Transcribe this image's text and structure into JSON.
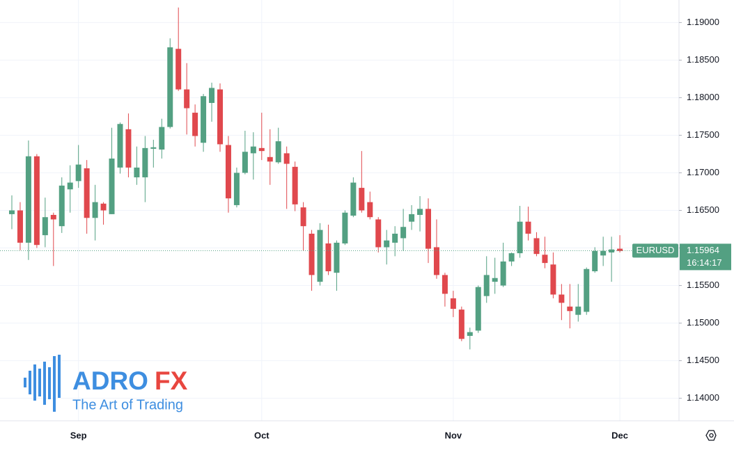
{
  "chart_data": {
    "type": "candlestick",
    "symbol": "EURUSD",
    "last_price": 1.15964,
    "countdown": "16:14:17",
    "up_color": "#53a082",
    "down_color": "#e0484d",
    "categories": [
      null,
      null,
      null,
      null,
      null,
      null,
      null,
      null,
      "Sep",
      null,
      null,
      null,
      null,
      null,
      null,
      null,
      null,
      null,
      null,
      null,
      null,
      null,
      null,
      null,
      null,
      null,
      null,
      null,
      null,
      null,
      "Oct",
      null,
      null,
      null,
      null,
      null,
      null,
      null,
      null,
      null,
      null,
      null,
      null,
      null,
      null,
      null,
      null,
      null,
      null,
      null,
      null,
      null,
      null,
      "Nov",
      null,
      null,
      null,
      null,
      null,
      null,
      null,
      null,
      null,
      null,
      null,
      null,
      null,
      null,
      null,
      null,
      null,
      null,
      null,
      "Dec"
    ],
    "open": [
      1.1645,
      1.165,
      1.1607,
      1.1722,
      1.1617,
      1.1644,
      1.1629,
      1.1678,
      1.1689,
      1.1706,
      1.164,
      1.1659,
      1.1645,
      1.1707,
      1.1758,
      1.1694,
      1.1694,
      1.1732,
      1.1731,
      1.1761,
      1.1865,
      1.1811,
      1.178,
      1.174,
      1.1793,
      1.1811,
      1.1737,
      1.1657,
      1.17,
      1.1726,
      1.1733,
      1.1721,
      1.1714,
      1.1726,
      1.1708,
      1.1654,
      1.1619,
      1.1555,
      1.1606,
      1.1567,
      1.1606,
      1.1643,
      1.168,
      1.1661,
      1.1638,
      1.1601,
      1.1607,
      1.1613,
      1.1635,
      1.1644,
      1.1652,
      1.1601,
      1.1564,
      1.1533,
      1.1518,
      1.1483,
      1.149,
      1.1536,
      1.1555,
      1.155,
      1.1582,
      1.1593,
      1.1635,
      1.1613,
      1.1591,
      1.1578,
      1.1538,
      1.1522,
      1.1511,
      1.1515,
      1.1569,
      1.159,
      1.1594,
      1.1599
    ],
    "high": [
      1.167,
      1.1661,
      1.1743,
      1.1725,
      1.1667,
      1.1647,
      1.1694,
      1.171,
      1.1737,
      1.1717,
      1.1684,
      1.1661,
      1.176,
      1.1767,
      1.1779,
      1.1735,
      1.1749,
      1.1744,
      1.1772,
      1.1879,
      1.192,
      1.1846,
      1.1791,
      1.1805,
      1.182,
      1.1819,
      1.1749,
      1.1707,
      1.1756,
      1.1754,
      1.178,
      1.1758,
      1.176,
      1.1735,
      1.1715,
      1.1661,
      1.1624,
      1.1633,
      1.1631,
      1.161,
      1.165,
      1.1694,
      1.1729,
      1.1675,
      1.1641,
      1.1624,
      1.1629,
      1.1652,
      1.1657,
      1.1669,
      1.1666,
      1.1638,
      1.1567,
      1.1543,
      1.1522,
      1.1494,
      1.155,
      1.1589,
      1.1587,
      1.1607,
      1.1594,
      1.1656,
      1.1655,
      1.1621,
      1.1615,
      1.1594,
      1.1552,
      1.1552,
      1.1552,
      1.1574,
      1.1601,
      1.1615,
      1.1615,
      1.1617
    ],
    "low": [
      1.1625,
      1.1597,
      1.1584,
      1.16,
      1.1601,
      1.1576,
      1.162,
      1.1647,
      1.168,
      1.1619,
      1.161,
      1.1631,
      1.1645,
      1.1699,
      1.1694,
      1.1684,
      1.1661,
      1.1707,
      1.1719,
      1.1759,
      1.1809,
      1.1751,
      1.1735,
      1.1728,
      1.1768,
      1.1728,
      1.1647,
      1.1654,
      1.1698,
      1.1691,
      1.1717,
      1.1684,
      1.1712,
      1.1652,
      1.1649,
      1.1596,
      1.1543,
      1.155,
      1.1564,
      1.1543,
      1.1604,
      1.1641,
      1.1647,
      1.1638,
      1.1594,
      1.1578,
      1.1589,
      1.1596,
      1.1624,
      1.1622,
      1.158,
      1.1559,
      1.1522,
      1.1508,
      1.1476,
      1.1465,
      1.1487,
      1.1527,
      1.1539,
      1.1548,
      1.1576,
      1.1587,
      1.161,
      1.1589,
      1.1573,
      1.1533,
      1.1504,
      1.1493,
      1.1502,
      1.1511,
      1.1567,
      1.1576,
      1.1555,
      1.1594
    ],
    "close": [
      1.165,
      1.1607,
      1.1722,
      1.1604,
      1.1641,
      1.1638,
      1.1683,
      1.1687,
      1.1711,
      1.164,
      1.1661,
      1.165,
      1.1719,
      1.1765,
      1.1707,
      1.1707,
      1.1733,
      1.1734,
      1.1761,
      1.1867,
      1.1811,
      1.1786,
      1.1749,
      1.1802,
      1.1813,
      1.1738,
      1.1666,
      1.17,
      1.1728,
      1.1735,
      1.1729,
      1.1715,
      1.1742,
      1.1712,
      1.1658,
      1.1629,
      1.1564,
      1.1624,
      1.1569,
      1.1607,
      1.1647,
      1.1687,
      1.165,
      1.1641,
      1.1601,
      1.161,
      1.1619,
      1.1628,
      1.1645,
      1.1652,
      1.1599,
      1.1564,
      1.1539,
      1.1519,
      1.1479,
      1.1488,
      1.1548,
      1.1564,
      1.156,
      1.1582,
      1.1593,
      1.1635,
      1.1619,
      1.1592,
      1.158,
      1.1538,
      1.1527,
      1.1516,
      1.1522,
      1.1572,
      1.1596,
      1.1596,
      1.1598,
      1.1596
    ],
    "ylim": [
      1.137,
      1.193
    ],
    "yticks": [
      {
        "value": 1.14,
        "label": "1.14000"
      },
      {
        "value": 1.145,
        "label": "1.14500"
      },
      {
        "value": 1.15,
        "label": "1.15000"
      },
      {
        "value": 1.155,
        "label": "1.15500"
      },
      {
        "value": 1.16,
        "label": "1.16000"
      },
      {
        "value": 1.165,
        "label": "1.16500"
      },
      {
        "value": 1.17,
        "label": "1.17000"
      },
      {
        "value": 1.175,
        "label": "1.17500"
      },
      {
        "value": 1.18,
        "label": "1.18000"
      },
      {
        "value": 1.185,
        "label": "1.18500"
      },
      {
        "value": 1.19,
        "label": "1.19000"
      }
    ],
    "grid": true
  },
  "watermark": {
    "brand_left": "ADRO",
    "brand_right": "FX",
    "tagline": "The Art of Trading"
  }
}
